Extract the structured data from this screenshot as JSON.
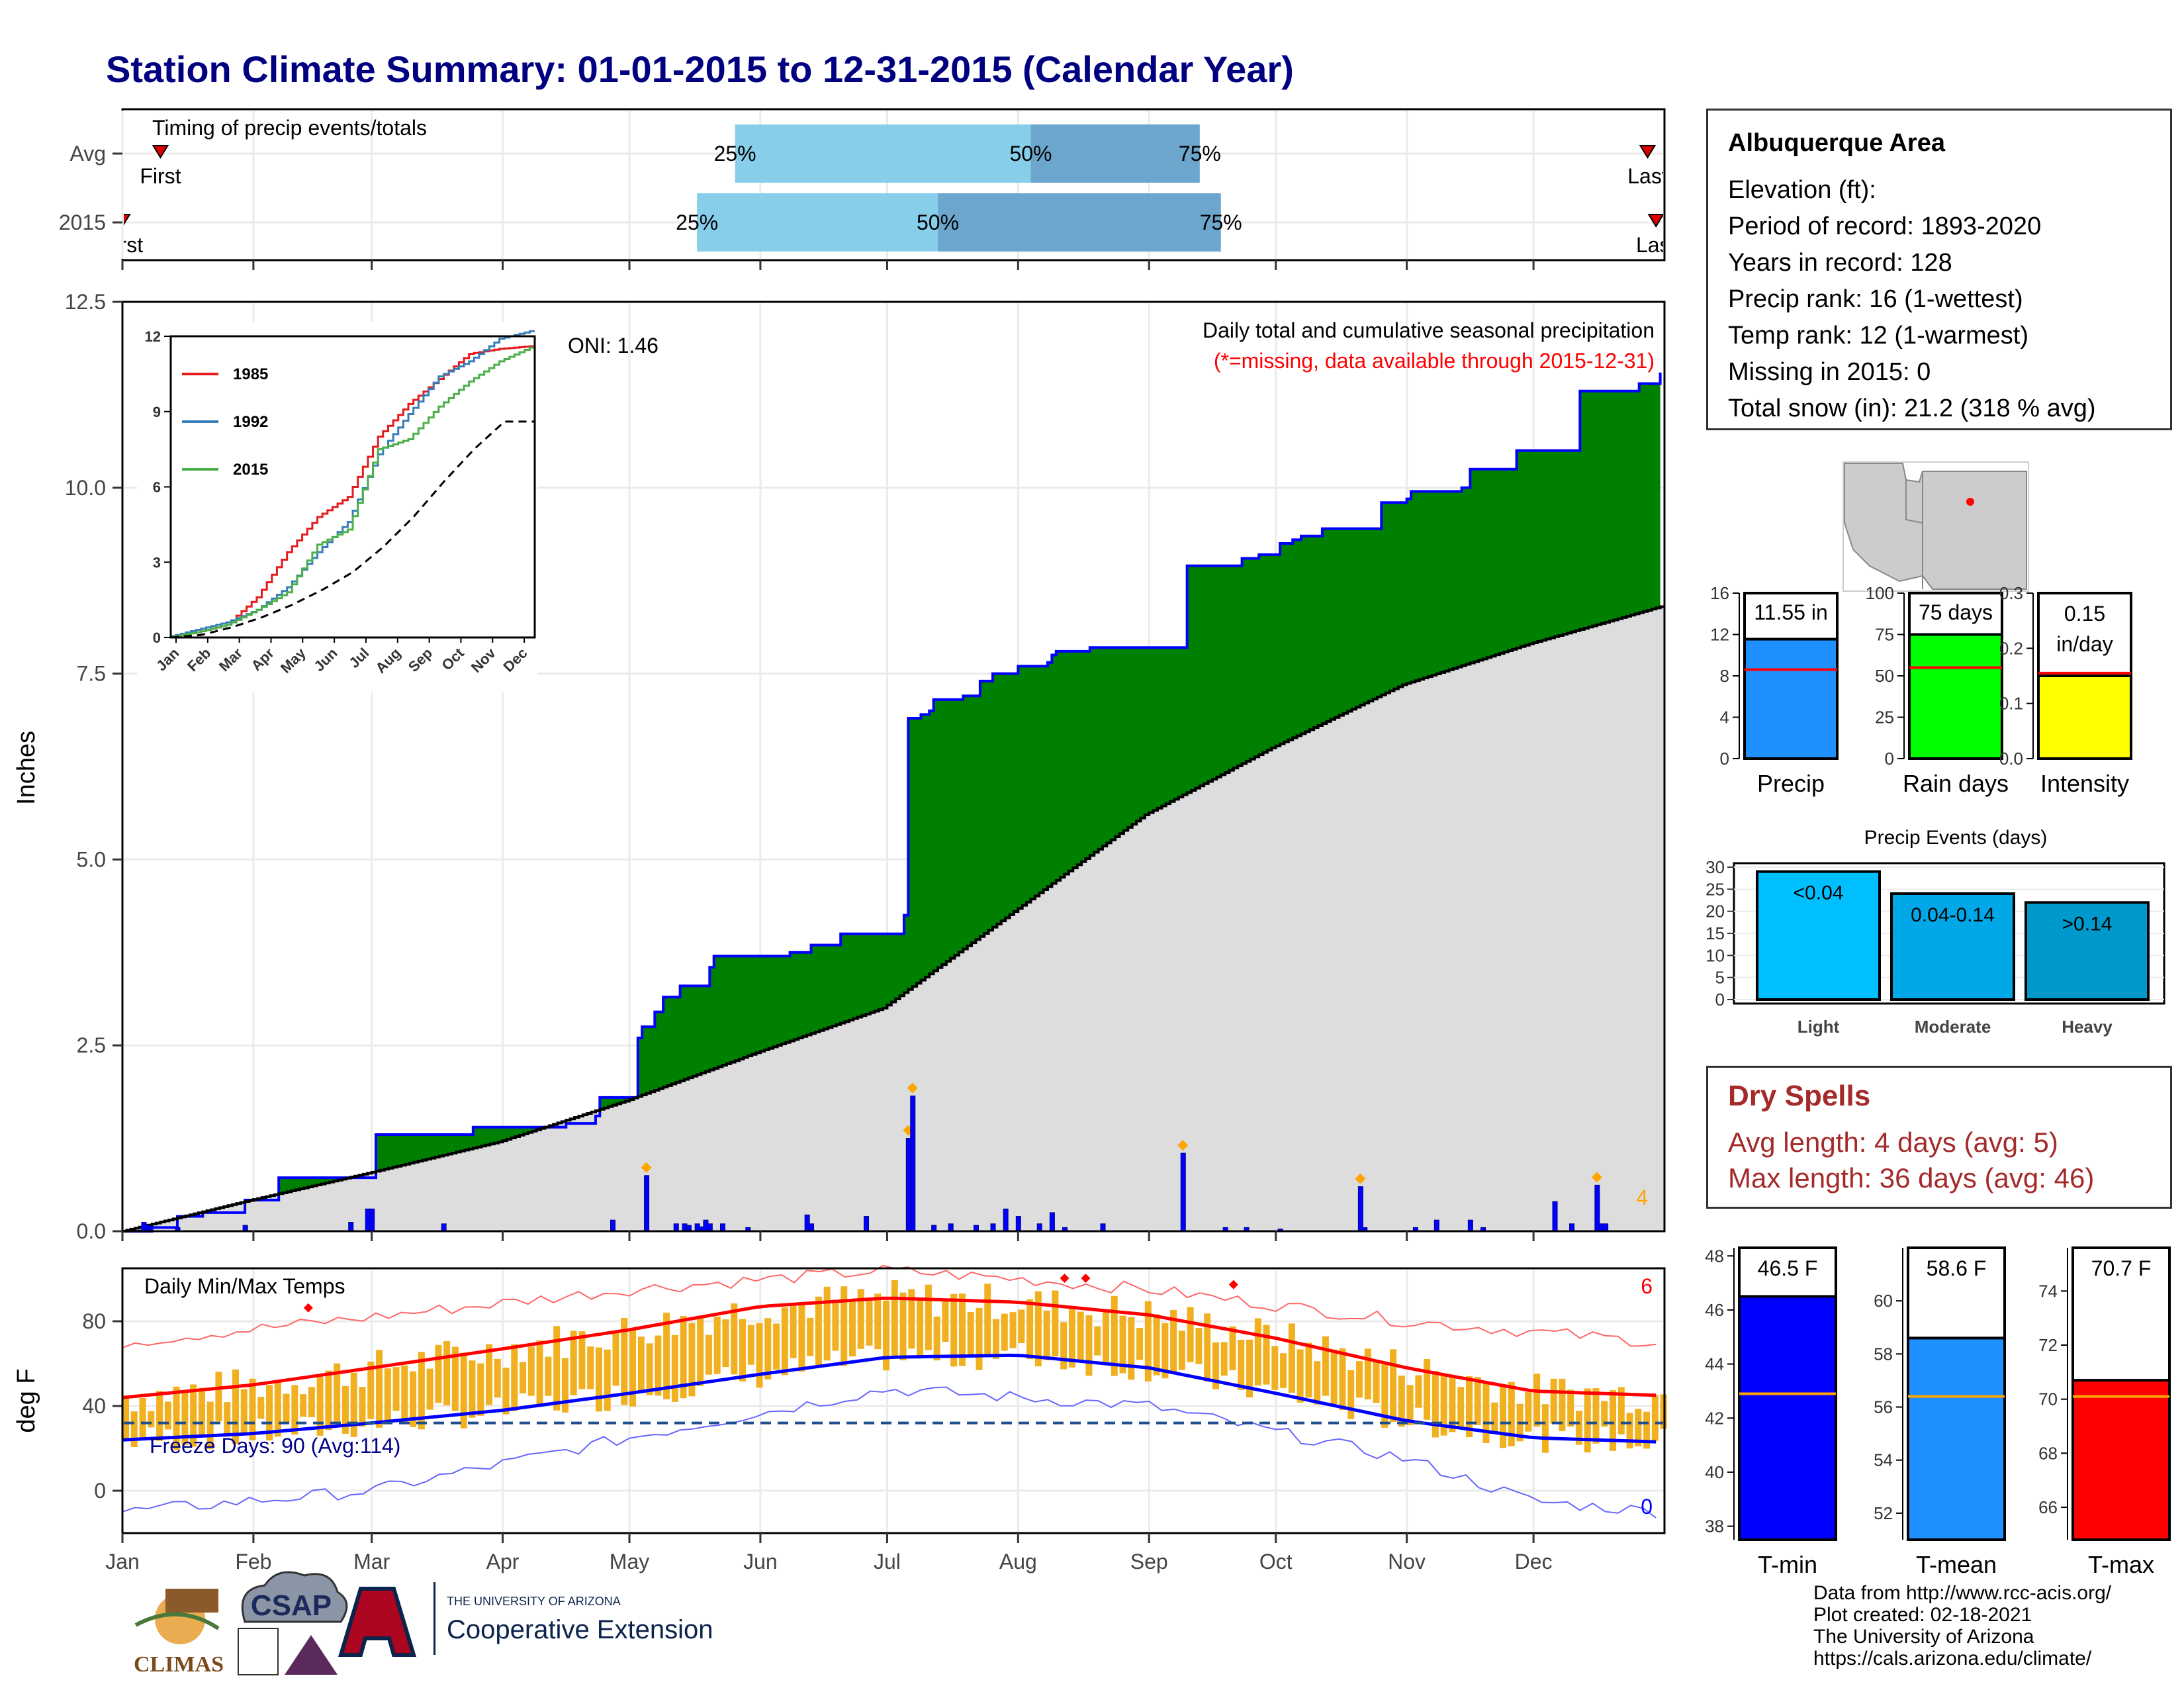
{
  "title": "Station Climate Summary: 01-01-2015 to 12-31-2015 (Calendar Year)",
  "colors": {
    "title": "#000080",
    "precip_fill": "#008000",
    "precip_line": "#0000ff",
    "avg_fill": "#dddddd",
    "bars": "#0000ff",
    "tmax": "#ff0000",
    "tmin": "#0000ff",
    "temp_bars": "#f0b020",
    "dry": "#a52a2a",
    "q_light": "#87ceeb",
    "q_dark": "#6ca6cd"
  },
  "timing": {
    "title": "Timing of precip events/totals",
    "rows": [
      {
        "label": "Avg",
        "first_label": "First",
        "first_doy": 10,
        "last_label": "Last",
        "last_doy": 362,
        "p25_doy": 146,
        "p50_doy": 216,
        "p75_doy": 256,
        "p25_label": "25%",
        "p50_label": "50%",
        "p75_label": "75%"
      },
      {
        "label": "2015",
        "first_label": "First",
        "first_doy": 1,
        "last_label": "Last",
        "last_doy": 364,
        "p25_doy": 137,
        "p50_doy": 194,
        "p75_doy": 261,
        "p25_label": "25%",
        "p50_label": "50%",
        "p75_label": "75%"
      }
    ]
  },
  "precip_panel": {
    "ylabel": "Inches",
    "annotation": "Daily total and cumulative seasonal precipitation",
    "missing_note": "(*=missing, data available through 2015-12-31)",
    "oni": "ONI: 1.46",
    "corner_count": "4"
  },
  "inset": {
    "legend": [
      "1985",
      "1992",
      "2015"
    ],
    "months": [
      "Jan",
      "Feb",
      "Mar",
      "Apr",
      "May",
      "Jun",
      "Jul",
      "Aug",
      "Sep",
      "Oct",
      "Nov",
      "Dec"
    ],
    "yticks": [
      "0",
      "3",
      "6",
      "9",
      "12"
    ]
  },
  "temp_panel": {
    "ylabel": "deg F",
    "title": "Daily Min/Max Temps",
    "freeze": "Freeze Days: 90 (Avg:114)",
    "count_hot": "6",
    "count_cold": "0",
    "yticks": [
      "0",
      "40",
      "80"
    ]
  },
  "months": [
    "Jan",
    "Feb",
    "Mar",
    "Apr",
    "May",
    "Jun",
    "Jul",
    "Aug",
    "Sep",
    "Oct",
    "Nov",
    "Dec"
  ],
  "station": {
    "name": "Albuquerque Area",
    "lines": [
      "Elevation (ft):",
      "Period of record: 1893-2020",
      "Years in record: 128",
      "Precip rank: 16 (1-wettest)",
      "Temp rank: 12 (1-warmest)",
      "Missing in 2015: 0",
      "Total snow (in): 21.2 (318 % avg)"
    ]
  },
  "summary_bars": [
    {
      "label": "Precip",
      "value_label": "11.55 in",
      "value": 11.55,
      "avg": 8.6,
      "ymax": 16,
      "ticks": [
        "0",
        "4",
        "8",
        "12",
        "16"
      ],
      "color": "#1e90ff"
    },
    {
      "label": "Rain days",
      "value_label": "75 days",
      "value": 75,
      "avg": 55,
      "ymax": 100,
      "ticks": [
        "0",
        "25",
        "50",
        "75",
        "100"
      ],
      "color": "#00ff00"
    },
    {
      "label": "Intensity",
      "value_label_1": "0.15",
      "value_label_2": "in/day",
      "value": 0.15,
      "avg": 0.155,
      "ymax": 0.3,
      "ticks": [
        "0.0",
        "0.1",
        "0.2",
        "0.3"
      ],
      "color": "#ffff00"
    }
  ],
  "events": {
    "title": "Precip Events (days)",
    "categories": [
      "Light",
      "Moderate",
      "Heavy"
    ],
    "labels": [
      "<0.04",
      "0.04-0.14",
      ">0.14"
    ],
    "values": [
      29,
      24,
      22
    ],
    "ticks": [
      "0",
      "5",
      "10",
      "15",
      "20",
      "25",
      "30"
    ]
  },
  "dry": {
    "title": "Dry Spells",
    "avg": "Avg length: 4 days (avg: 5)",
    "max": "Max length: 36 days (avg: 46)"
  },
  "temp_bars": [
    {
      "label": "T-min",
      "value_label": "46.5 F",
      "value": 46.5,
      "avg": 42.9,
      "ymin": 37.5,
      "ymax": 48.3,
      "ticks": [
        "38",
        "40",
        "42",
        "44",
        "46",
        "48"
      ],
      "color": "#0000ff"
    },
    {
      "label": "T-mean",
      "value_label": "58.6 F",
      "value": 58.6,
      "avg": 56.4,
      "ymin": 51.0,
      "ymax": 62.0,
      "ticks": [
        "52",
        "54",
        "56",
        "58",
        "60"
      ],
      "color": "#1e90ff"
    },
    {
      "label": "T-max",
      "value_label": "70.7 F",
      "value": 70.7,
      "avg": 70.1,
      "ymin": 64.8,
      "ymax": 75.6,
      "ticks": [
        "66",
        "68",
        "70",
        "72",
        "74"
      ],
      "color": "#ff0000"
    }
  ],
  "credits": [
    "Data from http://www.rcc-acis.org/",
    "Plot created: 02-18-2021",
    "The University of Arizona",
    "https://cals.arizona.edu/climate/"
  ],
  "logos": {
    "climas": "CLIMAS",
    "csap": "CSAP",
    "ua_small": "THE UNIVERSITY OF ARIZONA",
    "ua_big": "Cooperative Extension"
  },
  "chart_data": [
    {
      "type": "area",
      "title": "Daily total and cumulative seasonal precipitation",
      "ylabel": "Inches",
      "ylim": [
        0,
        12.5
      ],
      "x_unit": "day of year 2015",
      "series": [
        {
          "name": "cumulative 2015",
          "x": [
            1,
            8,
            14,
            20,
            30,
            38,
            60,
            61,
            79,
            84,
            100,
            106,
            113,
            114,
            121,
            123,
            124,
            127,
            129,
            133,
            140,
            141,
            159,
            164,
            171,
            175,
            186,
            187,
            190,
            192,
            193,
            200,
            204,
            207,
            213,
            220,
            221,
            222,
            224,
            228,
            230,
            251,
            253,
            266,
            268,
            270,
            272,
            275,
            278,
            280,
            285,
            298,
            299,
            305,
            306,
            318,
            320,
            330,
            331,
            345,
            346,
            357,
            360,
            365
          ],
          "values": [
            0.0,
            0.05,
            0.2,
            0.25,
            0.42,
            0.72,
            0.72,
            1.3,
            1.3,
            1.4,
            1.4,
            1.45,
            1.55,
            1.8,
            1.8,
            2.6,
            2.75,
            2.95,
            3.15,
            3.3,
            3.55,
            3.7,
            3.75,
            3.85,
            4.0,
            4.0,
            4.25,
            6.9,
            6.95,
            7.0,
            7.15,
            7.2,
            7.4,
            7.5,
            7.6,
            7.65,
            7.75,
            7.8,
            7.8,
            7.8,
            7.85,
            7.85,
            8.95,
            9.05,
            9.05,
            9.1,
            9.1,
            9.25,
            9.3,
            9.35,
            9.45,
            9.45,
            9.8,
            9.85,
            9.95,
            10.0,
            10.25,
            10.25,
            10.5,
            10.5,
            11.3,
            11.3,
            11.4,
            11.55
          ]
        },
        {
          "name": "average cumulative",
          "x": [
            1,
            30,
            59,
            90,
            120,
            151,
            181,
            212,
            243,
            273,
            304,
            334,
            365
          ],
          "values": [
            0.0,
            0.4,
            0.78,
            1.2,
            1.75,
            2.4,
            3.0,
            4.3,
            5.6,
            6.5,
            7.35,
            7.9,
            8.4
          ]
        }
      ],
      "daily_bars": {
        "x": [
          6,
          7,
          14,
          30,
          55,
          59,
          60,
          77,
          117,
          125,
          132,
          134,
          135,
          137,
          138,
          139,
          140,
          143,
          149,
          163,
          164,
          177,
          187,
          188,
          193,
          197,
          203,
          207,
          210,
          213,
          218,
          221,
          224,
          233,
          252,
          262,
          267,
          275,
          294,
          295,
          307,
          312,
          320,
          323,
          340,
          344,
          350,
          351,
          352
        ],
        "values": [
          0.12,
          0.08,
          0.05,
          0.08,
          0.12,
          0.3,
          0.3,
          0.1,
          0.15,
          0.75,
          0.1,
          0.1,
          0.08,
          0.1,
          0.06,
          0.15,
          0.1,
          0.1,
          0.05,
          0.22,
          0.1,
          0.2,
          1.25,
          1.82,
          0.08,
          0.1,
          0.08,
          0.1,
          0.3,
          0.2,
          0.1,
          0.25,
          0.05,
          0.1,
          1.05,
          0.05,
          0.05,
          0.03,
          0.6,
          0.05,
          0.05,
          0.15,
          0.15,
          0.05,
          0.4,
          0.1,
          0.62,
          0.1,
          0.1
        ]
      },
      "oni": 1.46
    },
    {
      "type": "line",
      "title": "",
      "x_unit": "month",
      "xlabels": [
        "Jan",
        "Feb",
        "Mar",
        "Apr",
        "May",
        "Jun",
        "Jul",
        "Aug",
        "Sep",
        "Oct",
        "Nov",
        "Dec"
      ],
      "ylim": [
        0,
        12
      ],
      "series": [
        {
          "name": "1985",
          "values": [
            0.2,
            0.5,
            1.6,
            3.4,
            4.8,
            5.6,
            8.0,
            9.3,
            10.3,
            11.3,
            11.5,
            11.6
          ]
        },
        {
          "name": "1992",
          "values": [
            0.3,
            0.6,
            1.1,
            2.0,
            3.4,
            4.6,
            7.3,
            8.9,
            10.4,
            11.0,
            11.9,
            12.2
          ]
        },
        {
          "name": "2015",
          "values": [
            0.2,
            0.5,
            1.1,
            1.8,
            3.7,
            4.3,
            7.5,
            7.9,
            9.2,
            10.2,
            11.0,
            11.55
          ]
        },
        {
          "name": "",
          "values": [
            0.1,
            0.4,
            0.8,
            1.3,
            1.9,
            2.6,
            3.6,
            4.8,
            6.2,
            7.5,
            8.6,
            8.6
          ]
        }
      ]
    },
    {
      "type": "line",
      "title": "Daily Min/Max Temps",
      "ylabel": "deg F",
      "ylim": [
        -20,
        105
      ],
      "x_unit": "day of year 2015",
      "series": [
        {
          "name": "avg max",
          "x": [
            1,
            32,
            60,
            91,
            121,
            152,
            182,
            213,
            244,
            274,
            305,
            335,
            365
          ],
          "values": [
            44,
            50,
            58,
            67,
            76,
            87,
            91,
            89,
            83,
            72,
            58,
            47,
            45
          ]
        },
        {
          "name": "avg min",
          "x": [
            1,
            32,
            60,
            91,
            121,
            152,
            182,
            213,
            244,
            274,
            305,
            335,
            365
          ],
          "values": [
            24,
            27,
            32,
            38,
            46,
            55,
            63,
            64,
            58,
            46,
            33,
            25,
            23
          ]
        },
        {
          "name": "record max",
          "x": [
            1,
            60,
            121,
            182,
            213,
            244,
            305,
            365
          ],
          "values": [
            70,
            82,
            95,
            104,
            100,
            95,
            80,
            70
          ]
        },
        {
          "name": "record min",
          "x": [
            1,
            60,
            121,
            182,
            244,
            305,
            335,
            365
          ],
          "values": [
            -10,
            0,
            25,
            48,
            40,
            15,
            -5,
            -10
          ]
        }
      ],
      "freeze_threshold": 32,
      "freeze_days": 90,
      "freeze_days_avg": 114
    },
    {
      "type": "bar",
      "title": "Precip Events (days)",
      "categories": [
        "Light",
        "Moderate",
        "Heavy"
      ],
      "values": [
        29,
        24,
        22
      ],
      "ylim": [
        0,
        30
      ]
    },
    {
      "type": "bar",
      "categories": [
        "Precip",
        "Rain days",
        "Intensity",
        "T-min",
        "T-mean",
        "T-max"
      ],
      "values": [
        11.55,
        75,
        0.15,
        46.5,
        58.6,
        70.7
      ]
    }
  ]
}
